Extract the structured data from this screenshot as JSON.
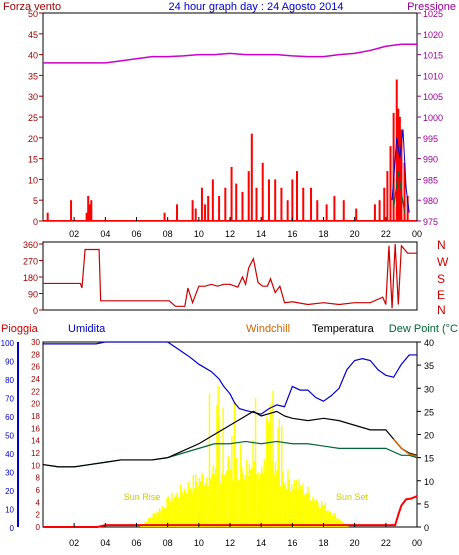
{
  "header": {
    "left_title": "Forza vento",
    "center_title": "24 hour graph day : 24 Agosto 2014",
    "right_title": "Pressione"
  },
  "colors": {
    "wind": "#ff0000",
    "gust": "#0000cc",
    "pressure": "#cc00cc",
    "direction": "#cc0000",
    "humidity": "#0000cc",
    "windchill": "#cc6600",
    "temperature": "#000000",
    "dewpoint": "#006633",
    "rain": "#ff0000",
    "sun": "#ffff00",
    "axis_left": "#990000",
    "axis_right": "#990099"
  },
  "x_ticks": [
    "02",
    "04",
    "06",
    "08",
    "10",
    "12",
    "14",
    "16",
    "18",
    "20",
    "22",
    "00"
  ],
  "direction_letters": [
    "N",
    "W",
    "S",
    "E",
    "N"
  ],
  "bottom_labels": {
    "rain": "Pioggia",
    "humidity": "Umidita",
    "windchill": "Windchill",
    "temperature": "Temperatura",
    "dewpoint": "Dew Point (°C"
  },
  "sun_labels": {
    "rise": "Sun Rise",
    "set": "Sun Set"
  },
  "chart_data": [
    {
      "type": "bar",
      "title": "24 hour graph day : 24 Agosto 2014",
      "series": [
        {
          "name": "Forza vento",
          "x": [
            0.3,
            1.8,
            2.8,
            2.9,
            3.0,
            3.1,
            7.8,
            8.6,
            9.6,
            9.8,
            10.2,
            10.4,
            10.6,
            10.9,
            11.3,
            11.7,
            12.1,
            12.4,
            12.8,
            13.2,
            13.4,
            13.7,
            14.1,
            14.5,
            14.9,
            15.3,
            15.7,
            16.0,
            16.3,
            16.7,
            17.2,
            17.6,
            18.2,
            18.7,
            19.3,
            20.1,
            21.3,
            21.6,
            21.9,
            22.1,
            22.3,
            22.5,
            22.7,
            22.8,
            22.9,
            23.0,
            23.2,
            23.4
          ],
          "values": [
            2,
            5,
            2,
            6,
            4,
            5,
            2,
            4,
            5,
            3,
            8,
            4,
            6,
            10,
            6,
            8,
            13,
            9,
            7,
            12,
            21,
            8,
            14,
            10,
            10,
            8,
            5,
            10,
            12,
            8,
            8,
            5,
            4,
            6,
            5,
            3,
            4,
            5,
            8,
            12,
            18,
            26,
            34,
            27,
            25,
            22,
            14,
            6
          ]
        },
        {
          "name": "Pressione",
          "x": [
            0,
            1,
            2,
            3,
            4,
            5,
            6,
            7,
            8,
            9,
            10,
            11,
            12,
            13,
            14,
            15,
            16,
            17,
            18,
            19,
            20,
            21,
            22,
            23,
            24
          ],
          "values": [
            1013,
            1013,
            1013,
            1013,
            1013,
            1013.5,
            1014,
            1014.5,
            1014.5,
            1014.7,
            1015,
            1015,
            1015.3,
            1015,
            1015,
            1015,
            1014.7,
            1014.5,
            1014.5,
            1015,
            1015.3,
            1016,
            1017,
            1017.5,
            1017.5
          ],
          "ylim": [
            975,
            1025
          ]
        }
      ],
      "x_range": [
        0,
        24
      ],
      "ylim": [
        0,
        50
      ],
      "yticks_left": [
        0,
        5,
        10,
        15,
        20,
        25,
        30,
        35,
        40,
        45,
        50
      ],
      "yticks_right": [
        975,
        980,
        985,
        990,
        995,
        1000,
        1005,
        1010,
        1015,
        1020,
        1025
      ]
    },
    {
      "type": "line",
      "series": [
        {
          "name": "direction",
          "x": [
            0,
            2.4,
            2.5,
            2.7,
            3.6,
            3.7,
            8.1,
            8.5,
            9.1,
            9.3,
            9.6,
            10.0,
            10.4,
            10.8,
            11.2,
            11.6,
            12.0,
            12.5,
            12.8,
            13.0,
            13.2,
            13.5,
            13.8,
            14.1,
            14.4,
            14.6,
            14.9,
            15.2,
            15.5,
            16.0,
            17.0,
            18.0,
            19.0,
            20.0,
            21.0,
            21.8,
            22.0,
            22.2,
            22.4,
            22.6,
            22.8,
            23.0,
            23.2,
            23.4,
            24.0
          ],
          "values": [
            145,
            145,
            120,
            330,
            330,
            50,
            50,
            20,
            20,
            120,
            40,
            130,
            130,
            140,
            130,
            140,
            140,
            125,
            180,
            140,
            230,
            280,
            150,
            130,
            130,
            170,
            95,
            130,
            40,
            45,
            30,
            40,
            30,
            40,
            40,
            70,
            30,
            350,
            10,
            360,
            30,
            350,
            330,
            310,
            310
          ]
        }
      ],
      "x_range": [
        0,
        24
      ],
      "ylim": [
        0,
        360
      ],
      "yticks": [
        0,
        90,
        180,
        270,
        360
      ]
    },
    {
      "type": "line",
      "series": [
        {
          "name": "Umidita",
          "x": [
            0,
            2,
            3.4,
            4,
            6,
            8,
            8.7,
            9.4,
            10,
            10.8,
            11.3,
            11.6,
            12,
            12.3,
            12.6,
            13,
            13.5,
            14,
            14.5,
            15,
            15.5,
            16,
            16.5,
            17,
            17.5,
            18,
            18.5,
            19,
            19.5,
            20,
            20.5,
            21,
            21.5,
            22,
            22.5,
            23,
            23.5,
            24
          ],
          "values": [
            99,
            99,
            99,
            100,
            100,
            100,
            96,
            92,
            88,
            84,
            80,
            76,
            72,
            67,
            64,
            63,
            62,
            61,
            64,
            66,
            65,
            76,
            74,
            74,
            70,
            68,
            71,
            75,
            85,
            90,
            91,
            90,
            85,
            82,
            81,
            88,
            93,
            93
          ],
          "ylim": [
            0,
            100
          ]
        },
        {
          "name": "Temperatura",
          "x": [
            0,
            1,
            2,
            3,
            4,
            5,
            6,
            7,
            8,
            9,
            10,
            11,
            11.5,
            12,
            12.5,
            13,
            13.5,
            14,
            14.5,
            15,
            15.5,
            16,
            17,
            18,
            19,
            20,
            21,
            22,
            22.5,
            23,
            23.5,
            24
          ],
          "values": [
            13.5,
            13,
            13,
            13.5,
            14,
            14.5,
            14.5,
            14.5,
            15,
            16.5,
            18,
            20,
            21,
            22,
            23,
            24,
            25,
            24,
            24.5,
            25,
            24,
            23.5,
            23,
            23.5,
            23,
            22,
            21,
            21,
            19,
            17,
            16,
            15.5
          ],
          "ylim": [
            0,
            40
          ]
        },
        {
          "name": "Dew Point",
          "x": [
            0,
            1,
            2,
            3,
            4,
            5,
            6,
            7,
            8,
            9,
            10,
            11,
            12,
            13,
            14,
            15,
            16,
            17,
            18,
            19,
            20,
            21,
            22,
            23,
            23.5,
            24
          ],
          "values": [
            13.5,
            13,
            13,
            13.5,
            14,
            14.5,
            14.5,
            14.5,
            15,
            16,
            17,
            18,
            18,
            18.5,
            18,
            18.5,
            18,
            18,
            17.5,
            17,
            17,
            17,
            17,
            15.5,
            15.5,
            15
          ],
          "ylim": [
            0,
            40
          ]
        },
        {
          "name": "Windchill",
          "x": [
            22.5,
            23,
            23.5,
            24
          ],
          "values": [
            19,
            17,
            15.8,
            15.3
          ],
          "ylim": [
            0,
            40
          ]
        },
        {
          "name": "Pioggia",
          "x": [
            0,
            3.5,
            4,
            6,
            10,
            15,
            22.6,
            22.8,
            23,
            23.3,
            23.6,
            24
          ],
          "values": [
            0,
            0,
            0.3,
            0.3,
            0.3,
            0.3,
            0.3,
            2,
            3.5,
            4.5,
            4.6,
            5
          ],
          "ylim": [
            0,
            30
          ]
        }
      ],
      "x_range": [
        0,
        24
      ],
      "yticks_humidity": [
        0,
        10,
        20,
        30,
        40,
        50,
        60,
        70,
        80,
        90,
        100
      ],
      "yticks_rain": [
        0,
        2,
        4,
        6,
        8,
        10,
        12,
        14,
        16,
        18,
        20,
        22,
        24,
        26,
        28,
        30
      ],
      "yticks_temp": [
        0,
        5,
        10,
        15,
        20,
        25,
        30,
        35,
        40
      ]
    }
  ]
}
